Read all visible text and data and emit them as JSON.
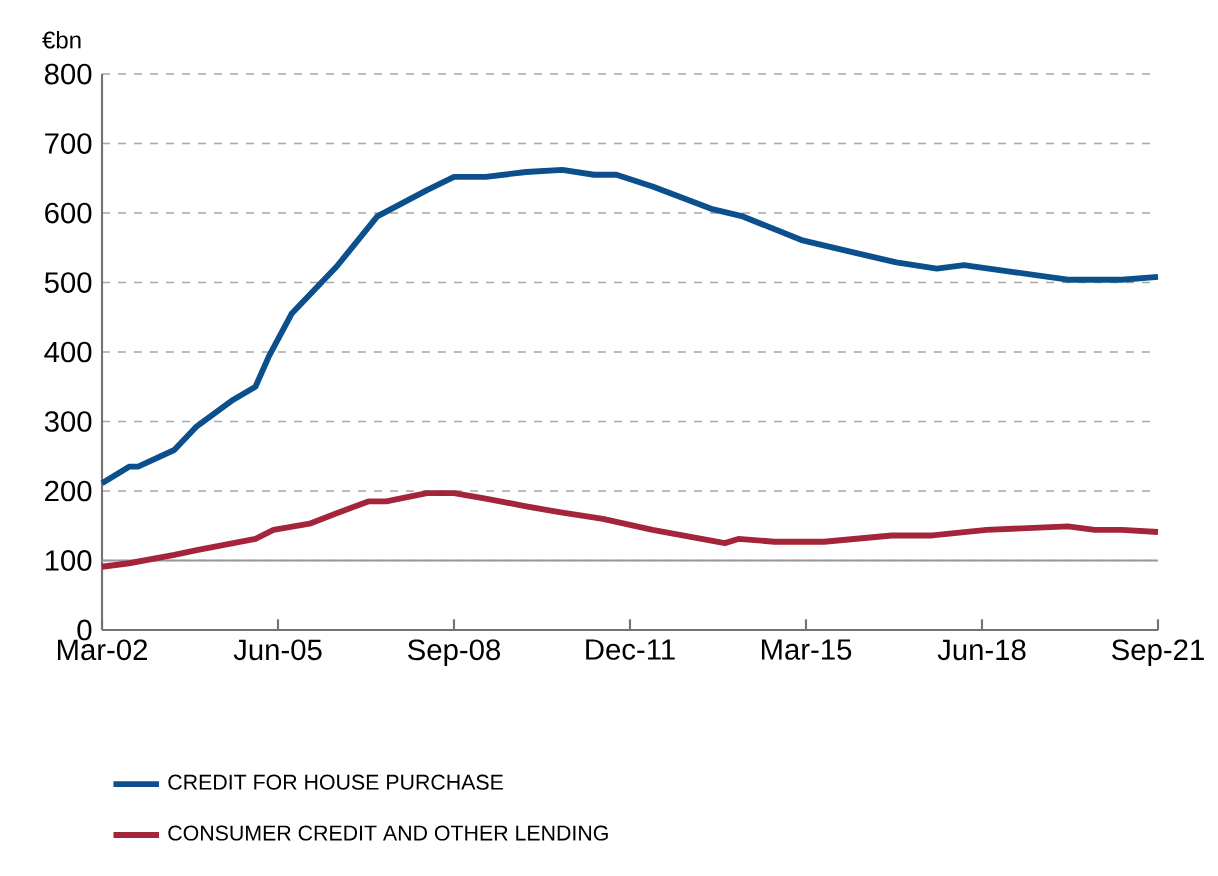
{
  "chart_data": {
    "type": "line",
    "ylabel": "€bn",
    "xlim": [
      "2002-03",
      "2021-09"
    ],
    "xticks": [
      {
        "value": "2002-03",
        "label": "Mar-02"
      },
      {
        "value": "2005-06",
        "label": "Jun-05"
      },
      {
        "value": "2008-09",
        "label": "Sep-08"
      },
      {
        "value": "2011-12",
        "label": "Dec-11"
      },
      {
        "value": "2015-03",
        "label": "Mar-15"
      },
      {
        "value": "2018-06",
        "label": "Jun-18"
      },
      {
        "value": "2021-09",
        "label": "Sep-21"
      }
    ],
    "ylim": [
      0,
      800
    ],
    "yticks": [
      0,
      100,
      200,
      300,
      400,
      500,
      600,
      700,
      800
    ],
    "grid": "y",
    "legend": "bottom",
    "marker": "none",
    "line_style": "solid",
    "ref_lines": [
      {
        "axis": "y",
        "value": 100,
        "color": "#999999"
      }
    ],
    "series": [
      {
        "name": "CREDIT FOR HOUSE PURCHASE",
        "color": "#0b4f8c",
        "x": [
          "2002-03",
          "2002-09",
          "2002-11",
          "2003-07",
          "2003-12",
          "2004-08",
          "2005-01",
          "2005-04",
          "2005-09",
          "2006-07",
          "2007-04",
          "2008-03",
          "2008-09",
          "2009-04",
          "2010-01",
          "2010-09",
          "2011-04",
          "2011-09",
          "2012-05",
          "2013-06",
          "2014-01",
          "2015-02",
          "2016-01",
          "2016-11",
          "2017-08",
          "2018-02",
          "2019-01",
          "2020-01",
          "2021-01",
          "2021-09"
        ],
        "values": [
          211,
          235,
          235,
          259,
          293,
          331,
          350,
          394,
          455,
          523,
          595,
          633,
          652,
          652,
          659,
          662,
          655,
          655,
          638,
          606,
          595,
          561,
          544,
          529,
          520,
          525,
          515,
          504,
          504,
          508
        ]
      },
      {
        "name": "CONSUMER CREDIT AND OTHER LENDING",
        "color": "#a3243b",
        "x": [
          "2002-03",
          "2002-09",
          "2003-07",
          "2003-12",
          "2005-01",
          "2005-05",
          "2006-01",
          "2006-07",
          "2007-02",
          "2007-06",
          "2008-03",
          "2008-09",
          "2009-04",
          "2010-01",
          "2010-08",
          "2011-06",
          "2012-05",
          "2013-09",
          "2013-12",
          "2014-08",
          "2015-07",
          "2016-10",
          "2017-07",
          "2018-07",
          "2020-01",
          "2020-07",
          "2021-01",
          "2021-09"
        ],
        "values": [
          91,
          96,
          108,
          115,
          131,
          144,
          153,
          168,
          185,
          185,
          197,
          197,
          189,
          178,
          170,
          160,
          144,
          125,
          131,
          127,
          127,
          136,
          136,
          144,
          149,
          144,
          144,
          141
        ]
      }
    ]
  }
}
